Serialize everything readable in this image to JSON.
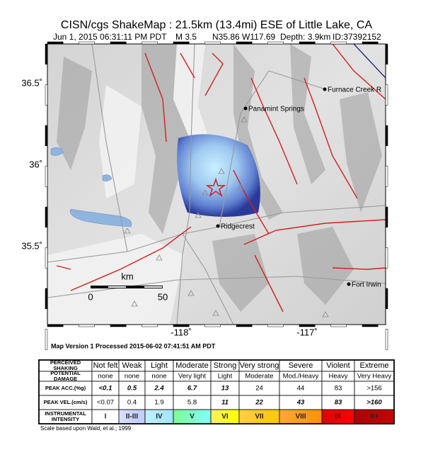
{
  "header": {
    "title": "CISN/cgs ShakeMap : 21.5km (13.4mi) ESE of Little Lake, CA",
    "datetime": "Jun  1, 2015 06:31:11 PM PDT",
    "magnitude": "M 3.5",
    "location": "N35.86 W117.69",
    "depth": "Depth: 3.9km",
    "id": "ID:37392152"
  },
  "map": {
    "lat_labels": [
      "36.5˚",
      "36˚",
      "35.5˚"
    ],
    "lon_labels": [
      "-118˚",
      "-117˚"
    ],
    "places": [
      "Furnace Creek R",
      "Panamint Springs",
      "Ridgecrest",
      "Fort Irwin"
    ],
    "scale": {
      "unit": "km",
      "start": "0",
      "end": "50"
    }
  },
  "processed": "Map Version 1 Processed 2015-06-02 07:41:51 AM PDT",
  "table": {
    "rows": [
      {
        "label": [
          "PERCEIVED",
          "SHAKING"
        ],
        "cells": [
          "Not felt",
          "Weak",
          "Light",
          "Moderate",
          "Strong",
          "Very strong",
          "Severe",
          "Violent",
          "Extreme"
        ]
      },
      {
        "label": [
          "POTENTIAL",
          "DAMAGE"
        ],
        "cells": [
          "none",
          "none",
          "none",
          "Very light",
          "Light",
          "Moderate",
          "Mod./Heavy",
          "Heavy",
          "Very Heavy"
        ]
      },
      {
        "label": [
          "PEAK ACC.(%g)"
        ],
        "cells": [
          "<0.1",
          "0.5",
          "2.4",
          "6.7",
          "13",
          "24",
          "44",
          "83",
          ">156"
        ]
      },
      {
        "label": [
          "PEAK VEL.(cm/s)"
        ],
        "cells": [
          "<0.07",
          "0.4",
          "1.9",
          "5.8",
          "11",
          "22",
          "43",
          "83",
          ">160"
        ]
      },
      {
        "label": [
          "INSTRUMENTAL",
          "INTENSITY"
        ],
        "cells": [
          "I",
          "II-III",
          "IV",
          "V",
          "VI",
          "VII",
          "VIII",
          "IX",
          "X+"
        ]
      }
    ]
  },
  "note": "Scale based upon Wald, et al.; 1999"
}
